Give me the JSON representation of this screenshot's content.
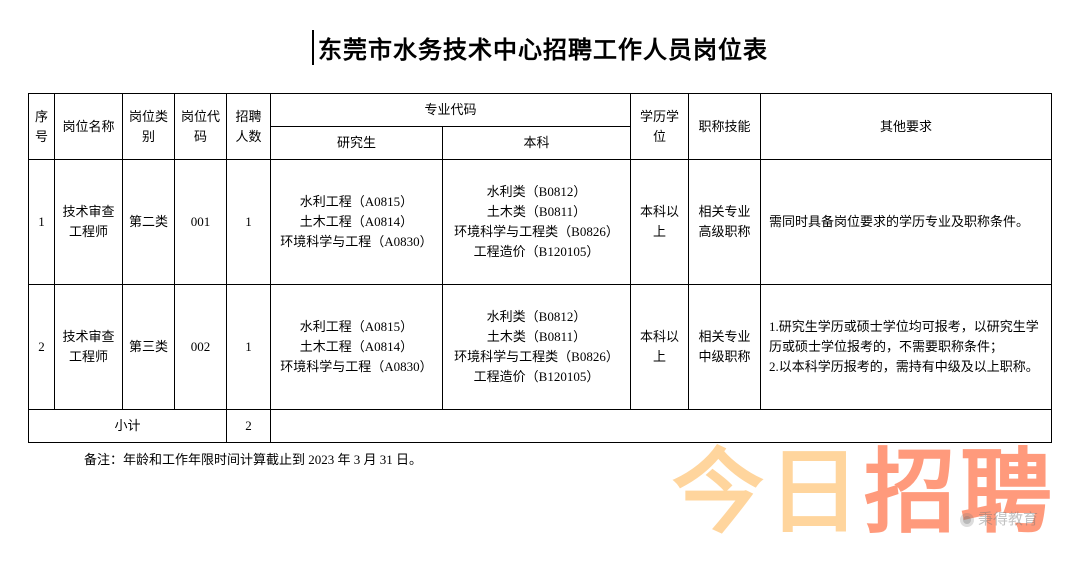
{
  "title": "东莞市水务技术中心招聘工作人员岗位表",
  "headers": {
    "idx": "序号",
    "name": "岗位名称",
    "category": "岗位类别",
    "code": "岗位代码",
    "count": "招聘人数",
    "major": "专业代码",
    "grad": "研究生",
    "under": "本科",
    "edu": "学历学位",
    "skill": "职称技能",
    "other": "其他要求"
  },
  "rows": [
    {
      "idx": "1",
      "name": "技术审查工程师",
      "category": "第二类",
      "code": "001",
      "count": "1",
      "grad": "水利工程（A0815）\n土木工程（A0814）\n环境科学与工程（A0830）",
      "under": "水利类（B0812）\n土木类（B0811）\n环境科学与工程类（B0826）\n工程造价（B120105）",
      "edu": "本科以上",
      "skill": "相关专业高级职称",
      "other": "需同时具备岗位要求的学历专业及职称条件。"
    },
    {
      "idx": "2",
      "name": "技术审查工程师",
      "category": "第三类",
      "code": "002",
      "count": "1",
      "grad": "水利工程（A0815）\n土木工程（A0814）\n环境科学与工程（A0830）",
      "under": "水利类（B0812）\n土木类（B0811）\n环境科学与工程类（B0826）\n工程造价（B120105）",
      "edu": "本科以上",
      "skill": "相关专业中级职称",
      "other": "1.研究生学历或硕士学位均可报考，以研究生学历或硕士学位报考的，不需要职称条件；\n2.以本科学历报考的，需持有中级及以上职称。"
    }
  ],
  "subtotal": {
    "label": "小计",
    "count": "2"
  },
  "footnote": "备注：年龄和工作年限时间计算截止到 2023 年 3 月 31 日。",
  "watermark": {
    "a": "今日",
    "b": "招聘",
    "sub": "秉得教育"
  }
}
